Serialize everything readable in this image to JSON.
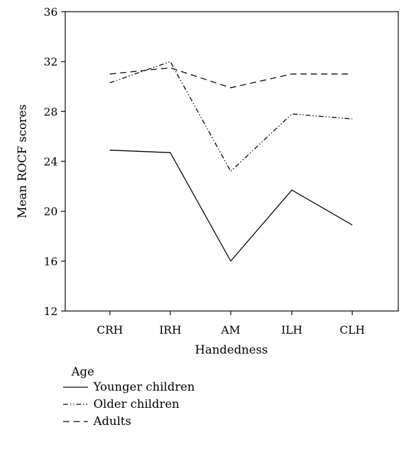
{
  "chart_data": {
    "type": "line",
    "categories": [
      "CRH",
      "IRH",
      "AM",
      "ILH",
      "CLH"
    ],
    "series": [
      {
        "name": "Younger children",
        "values": [
          24.9,
          24.7,
          16.0,
          21.7,
          18.9
        ],
        "dash": "solid"
      },
      {
        "name": "Older children",
        "values": [
          30.3,
          32.0,
          23.2,
          27.8,
          27.4
        ],
        "dash": "dash-dot-dot"
      },
      {
        "name": "Adults",
        "values": [
          31.0,
          31.5,
          29.9,
          31.0,
          31.0
        ],
        "dash": "dashed"
      }
    ],
    "xlabel": "Handedness",
    "ylabel": "Mean ROCF scores",
    "ylim": [
      12,
      36
    ],
    "yticks": [
      "12",
      "16",
      "20",
      "24",
      "28",
      "32",
      "36"
    ],
    "grid": false,
    "legend": {
      "title": "Age",
      "position": "bottom-left"
    },
    "line_color": "#000000"
  }
}
